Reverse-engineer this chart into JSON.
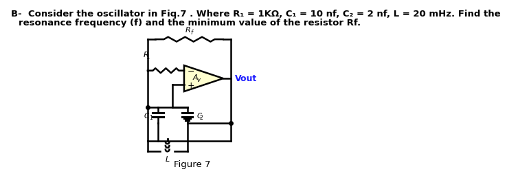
{
  "line1": "B-  Consider the oscillator in Fiq.7 . Where R₁ = 1KΩ, C₁ = 10 nf, C₂ = 2 nf, L = 20 mHz. Find the",
  "line2": "resonance frequency (f) and the minimum value of the resistor Rf.",
  "figure_label": "Figure 7",
  "bg_color": "#ffffff",
  "text_color": "#000000",
  "vout_color": "#1a1aff",
  "op_amp_fill": "#ffffd0",
  "op_amp_stroke": "#000000",
  "circuit_color": "#000000",
  "label_R1": "R",
  "label_R1_sub": "1",
  "label_Rf": "R",
  "label_Rf_sub": "f",
  "label_C1": "C",
  "label_C1_sub": "1",
  "label_C2": "C",
  "label_C2_sub": "2",
  "label_L": "L",
  "label_Av": "A",
  "label_Av_sub": "v",
  "label_Vout": "Vout",
  "label_plus": "+",
  "label_minus": "−"
}
